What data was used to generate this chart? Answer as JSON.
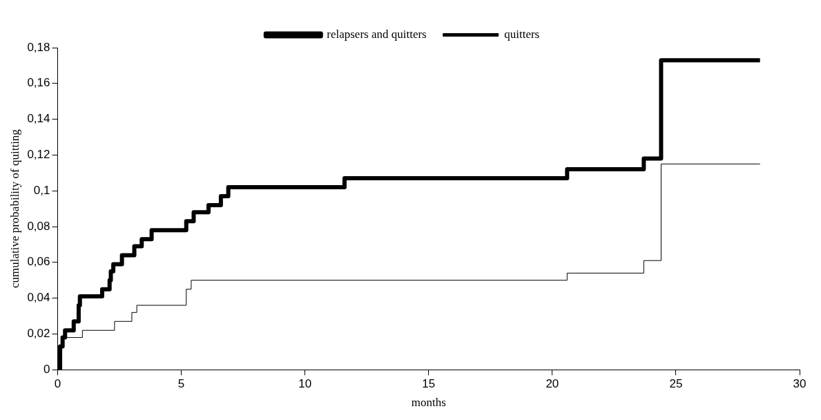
{
  "chart_data": {
    "type": "step",
    "xlabel": "months",
    "ylabel": "cumulative probability of quitting",
    "xlim": [
      0,
      30
    ],
    "ylim": [
      0,
      0.18
    ],
    "xticks": [
      0,
      5,
      10,
      15,
      20,
      25,
      30
    ],
    "yticks": [
      0,
      {
        "value": 0.02,
        "label": "0,02"
      },
      {
        "value": 0.04,
        "label": "0,04"
      },
      {
        "value": 0.06,
        "label": "0,06"
      },
      {
        "value": 0.08,
        "label": "0,08"
      },
      {
        "value": 0.1,
        "label": "0,1"
      },
      {
        "value": 0.12,
        "label": "0,12"
      },
      {
        "value": 0.14,
        "label": "0,14"
      },
      {
        "value": 0.16,
        "label": "0,16"
      },
      {
        "value": 0.18,
        "label": "0,18"
      }
    ],
    "grid": false,
    "legend": "top",
    "marker": "none",
    "series": [
      {
        "name": "relapsers and quitters",
        "color": "#000000",
        "x": [
          0,
          0.1,
          0.2,
          0.3,
          0.65,
          0.85,
          0.9,
          1.8,
          2.1,
          2.15,
          2.25,
          2.6,
          3.1,
          3.4,
          3.8,
          5.2,
          5.5,
          6.1,
          6.6,
          6.9,
          11.6,
          20.6,
          23.7,
          24.4,
          28.4
        ],
        "values": [
          0,
          0.013,
          0.018,
          0.022,
          0.027,
          0.036,
          0.041,
          0.045,
          0.05,
          0.055,
          0.059,
          0.064,
          0.069,
          0.073,
          0.078,
          0.083,
          0.088,
          0.092,
          0.097,
          0.102,
          0.107,
          0.112,
          0.118,
          0.173,
          0.173
        ]
      },
      {
        "name": "quitters",
        "color": "#000000",
        "x": [
          0,
          0.05,
          0.15,
          1.0,
          2.3,
          3.0,
          3.2,
          5.2,
          5.4,
          20.6,
          23.7,
          24.4,
          28.4
        ],
        "values": [
          0,
          0.009,
          0.018,
          0.022,
          0.027,
          0.032,
          0.036,
          0.045,
          0.05,
          0.054,
          0.061,
          0.115,
          0.115
        ]
      }
    ]
  }
}
